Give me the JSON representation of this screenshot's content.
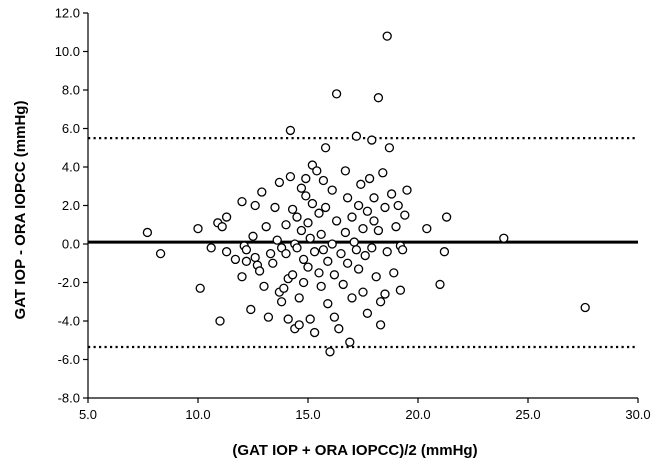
{
  "chart_data": {
    "type": "scatter",
    "title": "",
    "xlabel": "(GAT IOP + ORA IOPCC)/2 (mmHg)",
    "ylabel": "GAT IOP - ORA IOPCC (mmHg)",
    "xlim": [
      5.0,
      30.0
    ],
    "ylim": [
      -8.0,
      12.0
    ],
    "x_ticks": [
      "5.0",
      "10.0",
      "15.0",
      "20.0",
      "25.0",
      "30.0"
    ],
    "y_ticks": [
      "12.0",
      "10.0",
      "8.0",
      "6.0",
      "4.0",
      "2.0",
      "0.0",
      "-2.0",
      "-4.0",
      "-6.0",
      "-8.0"
    ],
    "grid": false,
    "marker": "open-circle",
    "reference_lines": [
      {
        "y": 0.1,
        "style": "solid"
      },
      {
        "y": 5.5,
        "style": "dotted"
      },
      {
        "y": -5.35,
        "style": "dotted"
      }
    ],
    "points": [
      [
        7.7,
        0.6
      ],
      [
        8.3,
        -0.5
      ],
      [
        10.0,
        0.8
      ],
      [
        10.1,
        -2.3
      ],
      [
        10.6,
        -0.2
      ],
      [
        10.9,
        1.1
      ],
      [
        11.0,
        -4.0
      ],
      [
        11.1,
        0.9
      ],
      [
        11.3,
        1.4
      ],
      [
        11.3,
        -0.4
      ],
      [
        11.7,
        -0.8
      ],
      [
        12.0,
        2.2
      ],
      [
        12.0,
        -1.7
      ],
      [
        12.1,
        -0.1
      ],
      [
        12.2,
        -0.3
      ],
      [
        12.2,
        -0.9
      ],
      [
        12.4,
        -3.4
      ],
      [
        12.5,
        0.4
      ],
      [
        12.6,
        2.0
      ],
      [
        12.6,
        -0.7
      ],
      [
        12.7,
        -1.1
      ],
      [
        12.8,
        -1.4
      ],
      [
        12.9,
        2.7
      ],
      [
        13.0,
        -2.2
      ],
      [
        13.1,
        0.9
      ],
      [
        13.2,
        -3.8
      ],
      [
        13.3,
        -0.5
      ],
      [
        13.4,
        -1.0
      ],
      [
        13.5,
        1.9
      ],
      [
        13.6,
        0.2
      ],
      [
        13.7,
        3.2
      ],
      [
        13.7,
        -2.5
      ],
      [
        13.8,
        -0.2
      ],
      [
        13.8,
        -3.0
      ],
      [
        13.9,
        -2.3
      ],
      [
        14.0,
        1.0
      ],
      [
        14.0,
        -0.5
      ],
      [
        14.1,
        -1.8
      ],
      [
        14.1,
        -3.9
      ],
      [
        14.2,
        5.9
      ],
      [
        14.2,
        3.5
      ],
      [
        14.3,
        1.8
      ],
      [
        14.3,
        -1.6
      ],
      [
        14.4,
        0.0
      ],
      [
        14.4,
        -4.4
      ],
      [
        14.5,
        1.4
      ],
      [
        14.5,
        -0.2
      ],
      [
        14.6,
        -2.8
      ],
      [
        14.6,
        -4.2
      ],
      [
        14.7,
        2.9
      ],
      [
        14.7,
        0.7
      ],
      [
        14.8,
        -0.8
      ],
      [
        14.8,
        -2.0
      ],
      [
        14.9,
        3.4
      ],
      [
        14.9,
        2.5
      ],
      [
        15.0,
        -1.2
      ],
      [
        15.0,
        1.1
      ],
      [
        15.1,
        0.3
      ],
      [
        15.1,
        -3.9
      ],
      [
        15.2,
        4.1
      ],
      [
        15.2,
        2.1
      ],
      [
        15.3,
        -0.4
      ],
      [
        15.3,
        -4.6
      ],
      [
        15.4,
        3.8
      ],
      [
        15.5,
        1.6
      ],
      [
        15.5,
        -1.5
      ],
      [
        15.6,
        0.5
      ],
      [
        15.6,
        -2.2
      ],
      [
        15.7,
        3.3
      ],
      [
        15.7,
        -0.3
      ],
      [
        15.8,
        5.0
      ],
      [
        15.8,
        1.9
      ],
      [
        15.9,
        -0.9
      ],
      [
        15.9,
        -3.1
      ],
      [
        16.0,
        -5.6
      ],
      [
        16.1,
        2.8
      ],
      [
        16.1,
        0.0
      ],
      [
        16.2,
        -1.6
      ],
      [
        16.2,
        -3.8
      ],
      [
        16.3,
        7.8
      ],
      [
        16.3,
        1.2
      ],
      [
        16.4,
        -4.4
      ],
      [
        16.5,
        -0.5
      ],
      [
        16.6,
        -2.1
      ],
      [
        16.7,
        3.8
      ],
      [
        16.7,
        0.6
      ],
      [
        16.8,
        -1.0
      ],
      [
        16.8,
        2.4
      ],
      [
        16.9,
        -5.1
      ],
      [
        17.0,
        1.4
      ],
      [
        17.0,
        -2.8
      ],
      [
        17.1,
        0.1
      ],
      [
        17.2,
        5.6
      ],
      [
        17.2,
        -0.3
      ],
      [
        17.3,
        2.0
      ],
      [
        17.3,
        -1.3
      ],
      [
        17.4,
        3.1
      ],
      [
        17.5,
        0.8
      ],
      [
        17.5,
        -2.5
      ],
      [
        17.6,
        -0.6
      ],
      [
        17.7,
        1.7
      ],
      [
        17.7,
        -3.6
      ],
      [
        17.8,
        3.4
      ],
      [
        17.9,
        5.4
      ],
      [
        17.9,
        -0.2
      ],
      [
        18.0,
        1.2
      ],
      [
        18.0,
        2.4
      ],
      [
        18.1,
        -1.7
      ],
      [
        18.2,
        7.6
      ],
      [
        18.2,
        0.7
      ],
      [
        18.3,
        -3.0
      ],
      [
        18.3,
        -4.2
      ],
      [
        18.4,
        3.7
      ],
      [
        18.5,
        1.9
      ],
      [
        18.5,
        -2.6
      ],
      [
        18.6,
        10.8
      ],
      [
        18.6,
        -0.4
      ],
      [
        18.7,
        5.0
      ],
      [
        18.8,
        2.6
      ],
      [
        18.9,
        -1.5
      ],
      [
        19.0,
        0.9
      ],
      [
        19.1,
        2.0
      ],
      [
        19.2,
        -0.1
      ],
      [
        19.2,
        -2.4
      ],
      [
        19.3,
        -0.3
      ],
      [
        19.4,
        1.5
      ],
      [
        19.5,
        2.8
      ],
      [
        20.4,
        0.8
      ],
      [
        21.0,
        -2.1
      ],
      [
        21.2,
        -0.4
      ],
      [
        21.3,
        1.4
      ],
      [
        23.9,
        0.3
      ],
      [
        27.6,
        -3.3
      ]
    ]
  }
}
